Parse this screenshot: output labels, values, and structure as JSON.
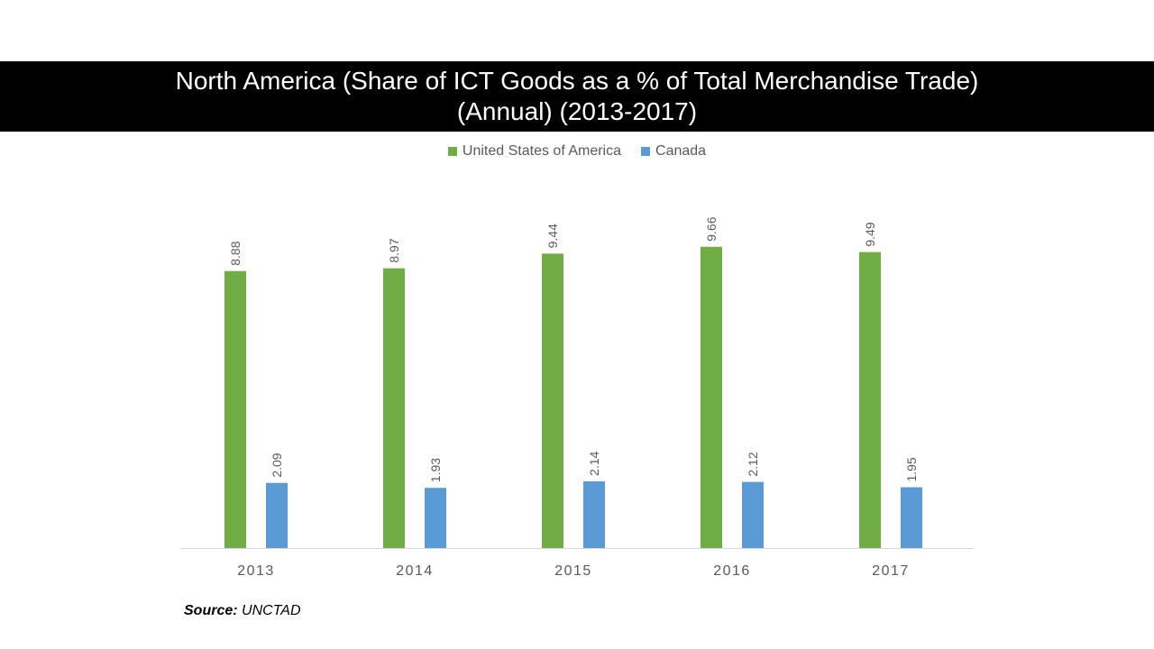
{
  "title": {
    "line1": "North America (Share of ICT Goods as a % of Total Merchandise Trade)",
    "line2": "(Annual) (2013-2017)"
  },
  "source": {
    "label": "Source:",
    "value": "UNCTAD"
  },
  "chart_data": {
    "type": "bar",
    "categories": [
      "2013",
      "2014",
      "2015",
      "2016",
      "2017"
    ],
    "series": [
      {
        "name": "United States of America",
        "color": "#70ad47",
        "values": [
          8.88,
          8.97,
          9.44,
          9.66,
          9.49
        ]
      },
      {
        "name": "Canada",
        "color": "#5b9bd5",
        "values": [
          2.09,
          1.93,
          2.14,
          2.12,
          1.95
        ]
      }
    ],
    "xlabel": "",
    "ylabel": "",
    "ylim": [
      0,
      10
    ],
    "grid": false,
    "legend": "top",
    "data_labels": true
  }
}
